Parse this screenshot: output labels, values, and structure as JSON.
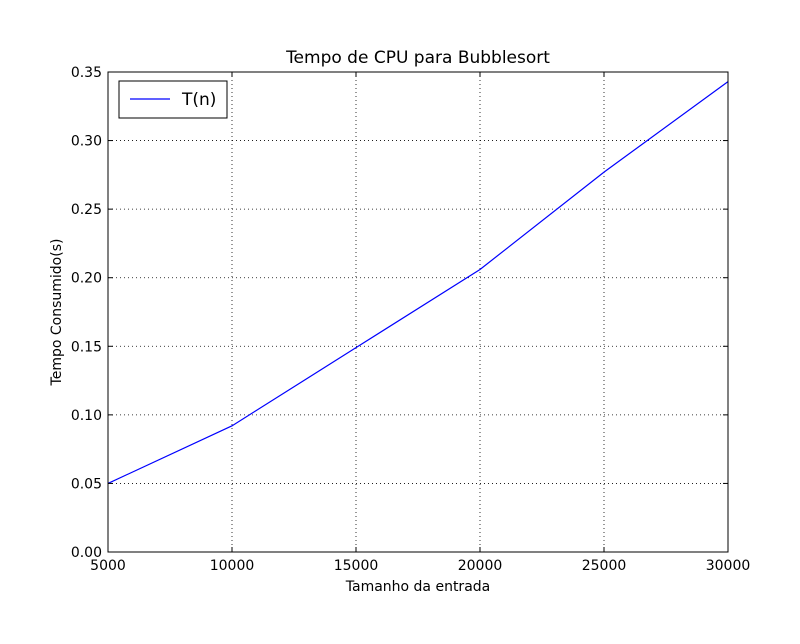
{
  "chart_data": {
    "type": "line",
    "title": "Tempo de CPU para Bubblesort",
    "xlabel": "Tamanho da entrada",
    "ylabel": "Tempo Consumido(s)",
    "xlim": [
      5000,
      30000
    ],
    "ylim": [
      0.0,
      0.35
    ],
    "xticks": [
      "5000",
      "10000",
      "15000",
      "20000",
      "25000",
      "30000"
    ],
    "yticks": [
      "0.00",
      "0.05",
      "0.10",
      "0.15",
      "0.20",
      "0.25",
      "0.30",
      "0.35"
    ],
    "grid": true,
    "legend_position": "top-left",
    "series": [
      {
        "name": "T(n)",
        "color": "#0000ff",
        "x": [
          5000,
          10000,
          15000,
          20000,
          25000,
          30000
        ],
        "y": [
          0.05,
          0.092,
          0.149,
          0.206,
          0.277,
          0.343
        ]
      }
    ]
  }
}
